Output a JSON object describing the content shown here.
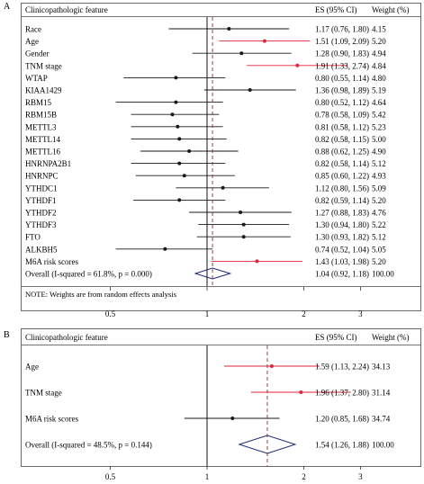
{
  "colors": {
    "highlight": "#e0243a",
    "line": "#1a1a1a",
    "diamond": "#1f2a7a",
    "dashed": "#8b2a3a"
  },
  "chart_data": [
    {
      "panel": "A",
      "type": "forest",
      "header": {
        "feature": "Clinicopathologic feature",
        "es": "ES (95% CI)",
        "weight": "Weight (%)"
      },
      "xaxis": {
        "scale": "log",
        "ticks": [
          0.5,
          1,
          2,
          3
        ],
        "tick_labels": [
          "0.5",
          "1",
          "2",
          "3"
        ],
        "null_value": 1
      },
      "rows": [
        {
          "label": "Race",
          "es": 1.17,
          "low": 0.76,
          "high": 1.8,
          "es_text": "1.17 (0.76, 1.80)",
          "weight": "4.15",
          "highlight": false
        },
        {
          "label": "Age",
          "es": 1.51,
          "low": 1.09,
          "high": 2.09,
          "es_text": "1.51 (1.09, 2.09)",
          "weight": "5.20",
          "highlight": true
        },
        {
          "label": "Gender",
          "es": 1.28,
          "low": 0.9,
          "high": 1.83,
          "es_text": "1.28 (0.90, 1.83)",
          "weight": "4.94",
          "highlight": false
        },
        {
          "label": "TNM stage",
          "es": 1.91,
          "low": 1.33,
          "high": 2.74,
          "es_text": "1.91 (1.33, 2.74)",
          "weight": "4.84",
          "highlight": true
        },
        {
          "label": "WTAP",
          "es": 0.8,
          "low": 0.55,
          "high": 1.14,
          "es_text": "0.80 (0.55, 1.14)",
          "weight": "4.80",
          "highlight": false
        },
        {
          "label": "KIAA1429",
          "es": 1.36,
          "low": 0.98,
          "high": 1.89,
          "es_text": "1.36 (0.98, 1.89)",
          "weight": "5.19",
          "highlight": false
        },
        {
          "label": "RBM15",
          "es": 0.8,
          "low": 0.52,
          "high": 1.12,
          "es_text": "0.80 (0.52, 1.12)",
          "weight": "4.64",
          "highlight": false
        },
        {
          "label": "RBM15B",
          "es": 0.78,
          "low": 0.58,
          "high": 1.09,
          "es_text": "0.78 (0.58, 1.09)",
          "weight": "5.42",
          "highlight": false
        },
        {
          "label": "METTL3",
          "es": 0.81,
          "low": 0.58,
          "high": 1.12,
          "es_text": "0.81 (0.58, 1.12)",
          "weight": "5.23",
          "highlight": false
        },
        {
          "label": "METTL14",
          "es": 0.82,
          "low": 0.58,
          "high": 1.15,
          "es_text": "0.82 (0.58, 1.15)",
          "weight": "5.00",
          "highlight": false
        },
        {
          "label": "METTL16",
          "es": 0.88,
          "low": 0.62,
          "high": 1.25,
          "es_text": "0.88 (0.62, 1.25)",
          "weight": "4.90",
          "highlight": false
        },
        {
          "label": "HNRNPA2B1",
          "es": 0.82,
          "low": 0.58,
          "high": 1.14,
          "es_text": "0.82 (0.58, 1.14)",
          "weight": "5.12",
          "highlight": false
        },
        {
          "label": "HNRNPC",
          "es": 0.85,
          "low": 0.6,
          "high": 1.22,
          "es_text": "0.85 (0.60, 1.22)",
          "weight": "4.93",
          "highlight": false
        },
        {
          "label": "YTHDC1",
          "es": 1.12,
          "low": 0.8,
          "high": 1.56,
          "es_text": "1.12 (0.80, 1.56)",
          "weight": "5.09",
          "highlight": false
        },
        {
          "label": "YTHDF1",
          "es": 0.82,
          "low": 0.59,
          "high": 1.14,
          "es_text": "0.82 (0.59, 1.14)",
          "weight": "5.20",
          "highlight": false
        },
        {
          "label": "YTHDF2",
          "es": 1.27,
          "low": 0.88,
          "high": 1.83,
          "es_text": "1.27 (0.88, 1.83)",
          "weight": "4.76",
          "highlight": false
        },
        {
          "label": "YTHDF3",
          "es": 1.3,
          "low": 0.94,
          "high": 1.8,
          "es_text": "1.30 (0.94, 1.80)",
          "weight": "5.22",
          "highlight": false
        },
        {
          "label": "FTO",
          "es": 1.3,
          "low": 0.93,
          "high": 1.82,
          "es_text": "1.30 (0.93, 1.82)",
          "weight": "5.12",
          "highlight": false
        },
        {
          "label": "ALKBH5",
          "es": 0.74,
          "low": 0.52,
          "high": 1.04,
          "es_text": "0.74 (0.52, 1.04)",
          "weight": "5.05",
          "highlight": false
        },
        {
          "label": "M6A risk scores",
          "es": 1.43,
          "low": 1.03,
          "high": 1.98,
          "es_text": "1.43 (1.03, 1.98)",
          "weight": "5.20",
          "highlight": true
        }
      ],
      "overall": {
        "label": "Overall  (I-squared = 61.8%, p = 0.000)",
        "es": 1.04,
        "low": 0.92,
        "high": 1.18,
        "es_text": "1.04 (0.92, 1.18)",
        "weight": "100.00"
      },
      "note": "NOTE: Weights are from random effects analysis"
    },
    {
      "panel": "B",
      "type": "forest",
      "header": {
        "feature": "Clinicopathologic feature",
        "es": "ES (95% CI)",
        "weight": "Weight (%)"
      },
      "xaxis": {
        "scale": "log",
        "ticks": [
          0.5,
          1,
          2,
          3
        ],
        "tick_labels": [
          "0.5",
          "1",
          "2",
          "3"
        ],
        "null_value": 1
      },
      "rows": [
        {
          "label": "Age",
          "es": 1.59,
          "low": 1.13,
          "high": 2.24,
          "es_text": "1.59 (1.13, 2.24)",
          "weight": "34.13",
          "highlight": true
        },
        {
          "label": "TNM stage",
          "es": 1.96,
          "low": 1.37,
          "high": 2.8,
          "es_text": "1.96 (1.37, 2.80)",
          "weight": "31.14",
          "highlight": true
        },
        {
          "label": "M6A risk scores",
          "es": 1.2,
          "low": 0.85,
          "high": 1.68,
          "es_text": "1.20 (0.85, 1.68)",
          "weight": "34.74",
          "highlight": false
        }
      ],
      "overall": {
        "label": "Overall  (I-squared = 48.5%, p = 0.144)",
        "es": 1.54,
        "low": 1.26,
        "high": 1.88,
        "es_text": "1.54 (1.26, 1.88)",
        "weight": "100.00"
      },
      "note": ""
    }
  ]
}
